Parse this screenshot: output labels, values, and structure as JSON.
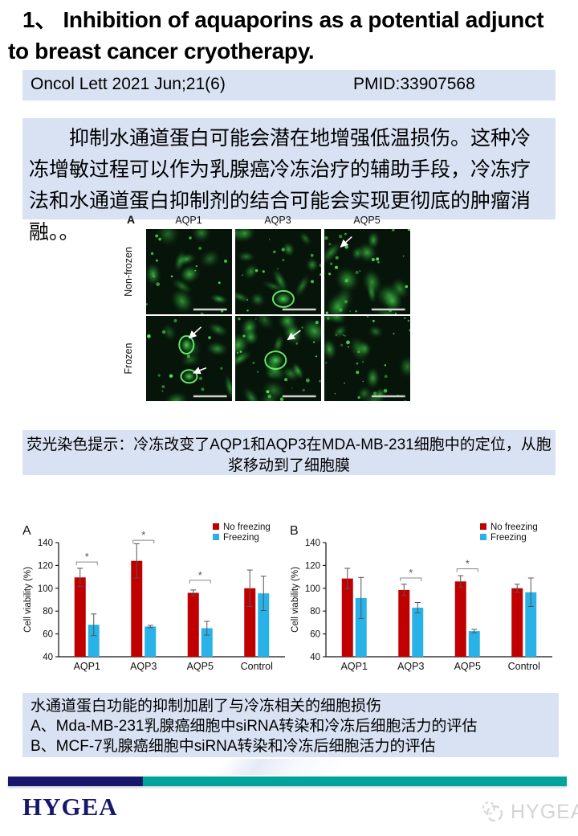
{
  "slide": {
    "title": "1、 Inhibition of aquaporins as a potential adjunct to breast cancer cryotherapy.",
    "journal_ref": "Oncol Lett 2021 Jun;21(6)",
    "pmid": "PMID:33907568",
    "abstract_cn": "抑制水通道蛋白可能会潜在地增强低温损伤。这种冷冻增敏过程可以作为乳腺癌冷冻治疗的辅助手段，冷冻疗法和水通道蛋白抑制剂的结合可能会实现更彻底的肿瘤消融。。",
    "caption1": "荧光染色提示：冷冻改变了AQP1和AQP3在MDA-MB-231细胞中的定位，从胞浆移动到了细胞膜",
    "caption2_lines": [
      "水通道蛋白功能的抑制加剧了与冷冻相关的细胞损伤",
      "A、Mda-MB-231乳腺癌细胞中siRNA转染和冷冻后细胞活力的评估",
      "B、MCF-7乳腺癌细胞中siRNA转染和冷冻后细胞活力的评估"
    ],
    "figure1": {
      "panel_label": "A",
      "columns": [
        "AQP1",
        "AQP3",
        "AQP5"
      ],
      "rows": [
        "Non-frozen",
        "Frozen"
      ]
    },
    "footer": {
      "brand": "HYGEA",
      "watermark": "HYGEA"
    }
  },
  "colors": {
    "no_freezing": "#c00000",
    "freezing": "#29b2e8",
    "box_blue": "#d9e2f3",
    "navy": "#17176b",
    "teal": "#00a39b",
    "micro_bg": "#07140a",
    "micro_green": "#3fdc4f"
  },
  "chart_data": [
    {
      "type": "bar",
      "panel_label": "A",
      "categories": [
        "AQP1",
        "AQP3",
        "AQP5",
        "Control"
      ],
      "series": [
        {
          "name": "No freezing",
          "color_key": "no_freezing",
          "values": [
            109.5,
            124,
            96,
            100
          ],
          "errors": [
            8,
            15,
            2.5,
            16
          ]
        },
        {
          "name": "Freezing",
          "color_key": "freezing",
          "values": [
            68,
            66.5,
            65,
            95.5
          ],
          "errors": [
            9.5,
            1,
            6,
            15
          ]
        }
      ],
      "ylabel": "Cell viability (%)",
      "ylim": [
        40,
        140
      ],
      "yticks": [
        40,
        60,
        80,
        100,
        120,
        140
      ],
      "grid": false,
      "legend_position": "top-right",
      "significance": [
        {
          "category": "AQP1",
          "y": 123
        },
        {
          "category": "AQP3",
          "y": 142
        },
        {
          "category": "AQP5",
          "y": 107
        }
      ]
    },
    {
      "type": "bar",
      "panel_label": "B",
      "categories": [
        "AQP1",
        "AQP3",
        "AQP5",
        "Control"
      ],
      "series": [
        {
          "name": "No freezing",
          "color_key": "no_freezing",
          "values": [
            108.5,
            98.5,
            106,
            100
          ],
          "errors": [
            9,
            5,
            5,
            3.5
          ]
        },
        {
          "name": "Freezing",
          "color_key": "freezing",
          "values": [
            91.5,
            83,
            62.5,
            96.5
          ],
          "errors": [
            18,
            4.5,
            1.5,
            12.5
          ]
        }
      ],
      "ylabel": "Cell viability (%)",
      "ylim": [
        40,
        140
      ],
      "yticks": [
        40,
        60,
        80,
        100,
        120,
        140
      ],
      "grid": false,
      "legend_position": "top-right",
      "significance": [
        {
          "category": "AQP3",
          "y": 109
        },
        {
          "category": "AQP5",
          "y": 117
        }
      ]
    }
  ]
}
